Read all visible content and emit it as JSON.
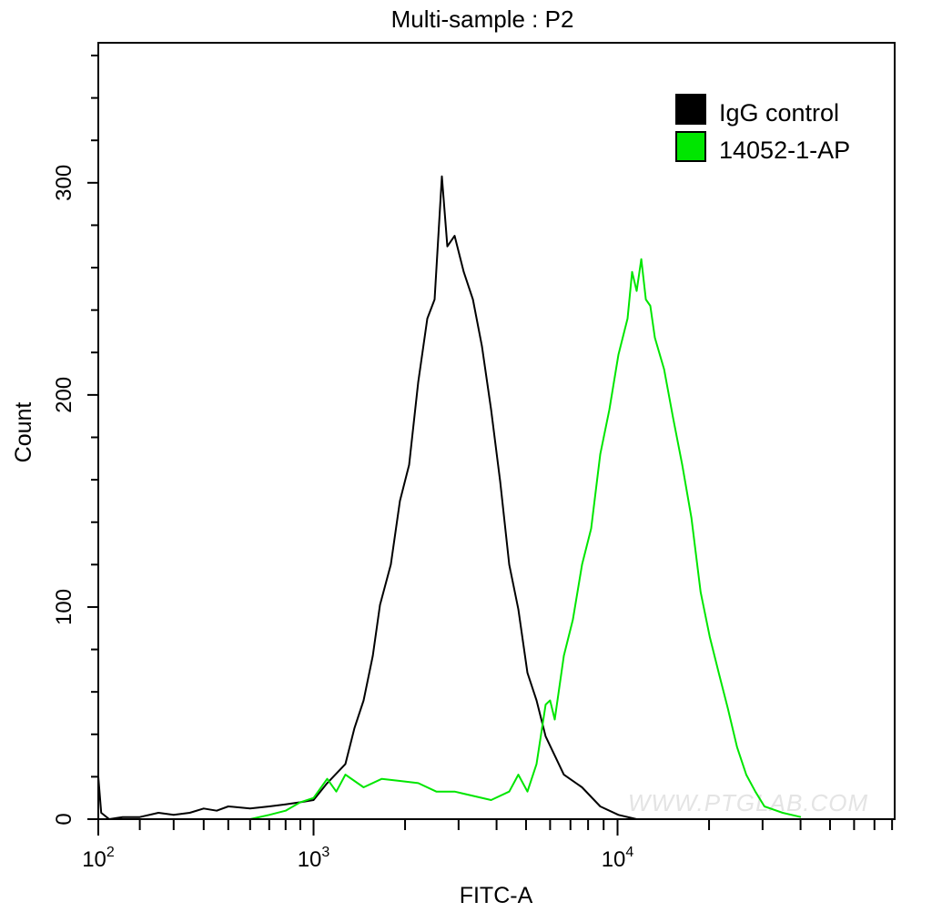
{
  "chart_data": {
    "type": "line",
    "title": "Multi-sample : P2",
    "xlabel": "FITC-A",
    "ylabel": "Count",
    "x_scale": "log",
    "xlim": [
      100,
      80000
    ],
    "ylim": [
      0,
      366
    ],
    "x_ticks": [
      {
        "base": "10",
        "exp": "2",
        "value": 100
      },
      {
        "base": "10",
        "exp": "3",
        "value": 1000
      },
      {
        "base": "10",
        "exp": "4",
        "value": 10000
      }
    ],
    "y_ticks": [
      0,
      100,
      200,
      300
    ],
    "grid": false,
    "legend_position": "top-right",
    "watermark": "WWW.PTGLAB.COM",
    "series": [
      {
        "name": "IgG control",
        "color": "#000000",
        "x": [
          100,
          105,
          120,
          150,
          200,
          250,
          300,
          350,
          400,
          450,
          500,
          600,
          700,
          800,
          900,
          1000,
          1109,
          1273,
          1364,
          1461,
          1566,
          1654,
          1796,
          1924,
          2062,
          2210,
          2368,
          2502,
          2644,
          2755,
          2912,
          3120,
          3343,
          3581,
          3837,
          4111,
          4404,
          4718,
          5055,
          5415,
          5800,
          6213,
          6657,
          7640,
          8770,
          10070,
          11560,
          20000
        ],
        "y": [
          20,
          3,
          0,
          1,
          1,
          3,
          2,
          3,
          5,
          4,
          6,
          5,
          6,
          7,
          8,
          9,
          17,
          26,
          43,
          56,
          77,
          101,
          120,
          150,
          167,
          206,
          236,
          245,
          303,
          270,
          275,
          258,
          245,
          223,
          193,
          159,
          120,
          99,
          69,
          56,
          39,
          30,
          21,
          15,
          6,
          2,
          0,
          0
        ]
      },
      {
        "name": "14052-1-AP",
        "color": "#00e600",
        "x": [
          600,
          700,
          800,
          900,
          1000,
          1109,
          1188,
          1273,
          1461,
          1677,
          1924,
          2210,
          2535,
          2912,
          3343,
          3837,
          4404,
          4718,
          5055,
          5415,
          5800,
          6000,
          6213,
          6657,
          7130,
          7640,
          8190,
          8770,
          9400,
          10070,
          10790,
          11170,
          11560,
          11970,
          12390,
          12820,
          13270,
          14230,
          15240,
          16330,
          17500,
          18760,
          20100,
          21530,
          23080,
          24730,
          26500,
          28400,
          30430,
          34930,
          40100
        ],
        "y": [
          0,
          2,
          4,
          8,
          10,
          19,
          13,
          21,
          15,
          19,
          18,
          17,
          13,
          13,
          11,
          9,
          13,
          21,
          13,
          26,
          54,
          56,
          47,
          77,
          94,
          120,
          137,
          172,
          193,
          219,
          236,
          258,
          249,
          264,
          245,
          242,
          227,
          212,
          189,
          167,
          142,
          107,
          86,
          69,
          52,
          34,
          21,
          13,
          6,
          3,
          1
        ]
      }
    ]
  }
}
